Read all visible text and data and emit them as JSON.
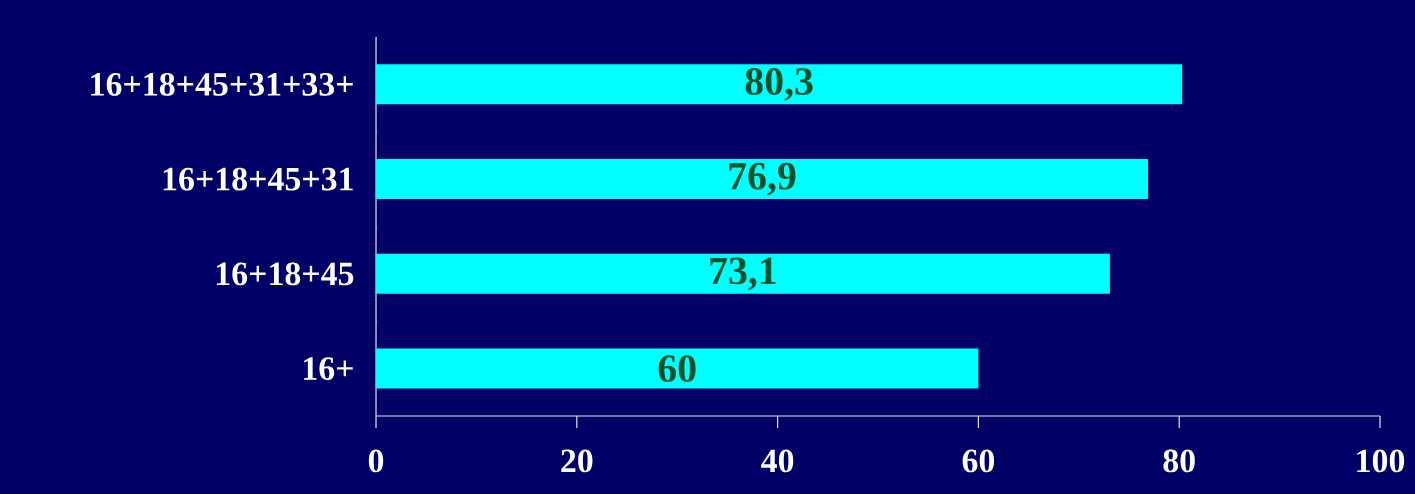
{
  "chart_data": {
    "type": "bar",
    "orientation": "horizontal",
    "categories": [
      "16+18+45+31+33+",
      "16+18+45+31",
      "16+18+45",
      "16+"
    ],
    "values": [
      80.3,
      76.9,
      73.1,
      60
    ],
    "value_labels": [
      "80,3",
      "76,9",
      "73,1",
      "60"
    ],
    "color": "#00ffff",
    "xlim": [
      0,
      100
    ],
    "xticks": [
      0,
      20,
      40,
      60,
      80,
      100
    ]
  }
}
